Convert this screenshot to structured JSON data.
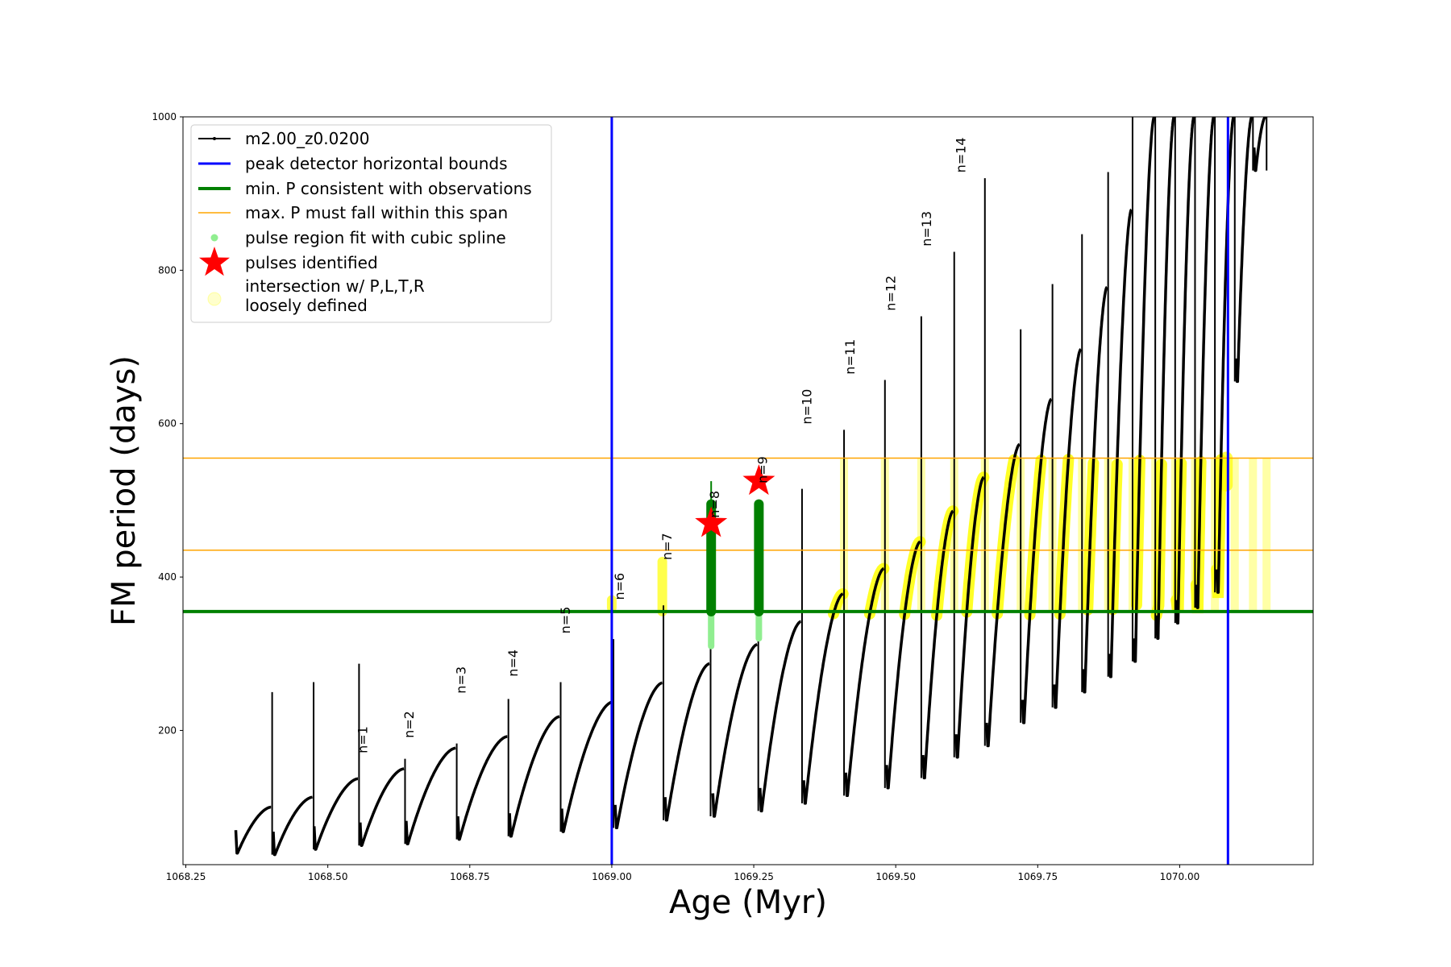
{
  "chart_data": {
    "type": "line",
    "title": "",
    "xlabel": "Age (Myr)",
    "ylabel": "FM period (days)",
    "xlim": [
      1068.245,
      1070.235
    ],
    "ylim": [
      25,
      1000
    ],
    "xticks": [
      "1068.25",
      "1068.50",
      "1068.75",
      "1069.00",
      "1069.25",
      "1069.50",
      "1069.75",
      "1070.00"
    ],
    "yticks": [
      "200",
      "400",
      "600",
      "800",
      "1000"
    ],
    "xtick_values": [
      1068.25,
      1068.5,
      1068.75,
      1069.0,
      1069.25,
      1069.5,
      1069.75,
      1070.0
    ],
    "ytick_values": [
      200,
      400,
      600,
      800,
      1000
    ],
    "grid": false,
    "legend_position": "top-left",
    "legend": {
      "series": "m2.00_z0.0200",
      "bounds": "peak detector horizontal bounds",
      "minP": "min. P consistent with observations",
      "maxP": "max. P must fall within this span",
      "spline": "pulse region fit with cubic spline",
      "pulses": "pulses identified",
      "intersection_line1": "intersection w/ P,L,T,R",
      "intersection_line2": "loosely defined"
    },
    "reference_lines": {
      "peak_detector_bounds_x": [
        1069.0,
        1070.085
      ],
      "min_P_y": 355,
      "max_P_span_y": [
        435,
        555
      ]
    },
    "colors": {
      "series": "#000000",
      "bounds": "#0000ff",
      "minP": "#008000",
      "maxP": "#ffa500",
      "spline": "#90ee90",
      "pulse": "#ff0000",
      "intersection": "#ffff00"
    },
    "pulse_labels": [
      {
        "text": "n=1",
        "x": 1068.555,
        "y": 168
      },
      {
        "text": "n=2",
        "x": 1068.637,
        "y": 188
      },
      {
        "text": "n=3",
        "x": 1068.728,
        "y": 246
      },
      {
        "text": "n=4",
        "x": 1068.82,
        "y": 268
      },
      {
        "text": "n=5",
        "x": 1068.912,
        "y": 324
      },
      {
        "text": "n=6",
        "x": 1069.007,
        "y": 368
      },
      {
        "text": "n=7",
        "x": 1069.091,
        "y": 420
      },
      {
        "text": "n=8",
        "x": 1069.175,
        "y": 475
      },
      {
        "text": "n=9",
        "x": 1069.259,
        "y": 520
      },
      {
        "text": "n=10",
        "x": 1069.337,
        "y": 597
      },
      {
        "text": "n=11",
        "x": 1069.413,
        "y": 662
      },
      {
        "text": "n=12",
        "x": 1069.485,
        "y": 745
      },
      {
        "text": "n=13",
        "x": 1069.548,
        "y": 829
      },
      {
        "text": "n=14",
        "x": 1069.608,
        "y": 925
      }
    ],
    "pulses_identified": [
      {
        "x": 1069.175,
        "y": 470
      },
      {
        "x": 1069.259,
        "y": 525
      }
    ],
    "cycles": [
      {
        "x0": 1068.338,
        "x1": 1068.4,
        "ymin": 40,
        "ymax": 100
      },
      {
        "x0": 1068.404,
        "x1": 1068.473,
        "ymin": 38,
        "ymax": 113
      },
      {
        "x0": 1068.476,
        "x1": 1068.553,
        "ymin": 45,
        "ymax": 137
      },
      {
        "x0": 1068.557,
        "x1": 1068.634,
        "ymin": 50,
        "ymax": 150
      },
      {
        "x0": 1068.638,
        "x1": 1068.725,
        "ymin": 52,
        "ymax": 177
      },
      {
        "x0": 1068.729,
        "x1": 1068.816,
        "ymin": 58,
        "ymax": 192
      },
      {
        "x0": 1068.82,
        "x1": 1068.908,
        "ymin": 62,
        "ymax": 218
      },
      {
        "x0": 1068.912,
        "x1": 1069.001,
        "ymin": 68,
        "ymax": 237
      },
      {
        "x0": 1069.006,
        "x1": 1069.089,
        "ymin": 73,
        "ymax": 262
      },
      {
        "x0": 1069.094,
        "x1": 1069.172,
        "ymin": 83,
        "ymax": 287
      },
      {
        "x0": 1069.178,
        "x1": 1069.256,
        "ymin": 88,
        "ymax": 312
      },
      {
        "x0": 1069.261,
        "x1": 1069.333,
        "ymin": 95,
        "ymax": 342
      },
      {
        "x0": 1069.338,
        "x1": 1069.407,
        "ymin": 105,
        "ymax": 378
      },
      {
        "x0": 1069.412,
        "x1": 1069.479,
        "ymin": 115,
        "ymax": 411
      },
      {
        "x0": 1069.484,
        "x1": 1069.543,
        "ymin": 125,
        "ymax": 446
      },
      {
        "x0": 1069.548,
        "x1": 1069.601,
        "ymin": 138,
        "ymax": 486
      },
      {
        "x0": 1069.606,
        "x1": 1069.655,
        "ymin": 165,
        "ymax": 530
      },
      {
        "x0": 1069.66,
        "x1": 1069.718,
        "ymin": 180,
        "ymax": 573
      },
      {
        "x0": 1069.723,
        "x1": 1069.774,
        "ymin": 210,
        "ymax": 632
      },
      {
        "x0": 1069.779,
        "x1": 1069.826,
        "ymin": 230,
        "ymax": 697
      },
      {
        "x0": 1069.83,
        "x1": 1069.872,
        "ymin": 250,
        "ymax": 778
      },
      {
        "x0": 1069.876,
        "x1": 1069.915,
        "ymin": 270,
        "ymax": 879
      },
      {
        "x0": 1069.919,
        "x1": 1069.955,
        "ymin": 290,
        "ymax": 1000
      },
      {
        "x0": 1069.959,
        "x1": 1069.99,
        "ymin": 320,
        "ymax": 1000
      },
      {
        "x0": 1069.994,
        "x1": 1070.025,
        "ymin": 340,
        "ymax": 1000
      },
      {
        "x0": 1070.029,
        "x1": 1070.06,
        "ymin": 360,
        "ymax": 1000
      },
      {
        "x0": 1070.065,
        "x1": 1070.095,
        "ymin": 380,
        "ymax": 1000
      },
      {
        "x0": 1070.099,
        "x1": 1070.127,
        "ymin": 655,
        "ymax": 1000
      },
      {
        "x0": 1070.131,
        "x1": 1070.151,
        "ymin": 930,
        "ymax": 1000
      }
    ]
  }
}
